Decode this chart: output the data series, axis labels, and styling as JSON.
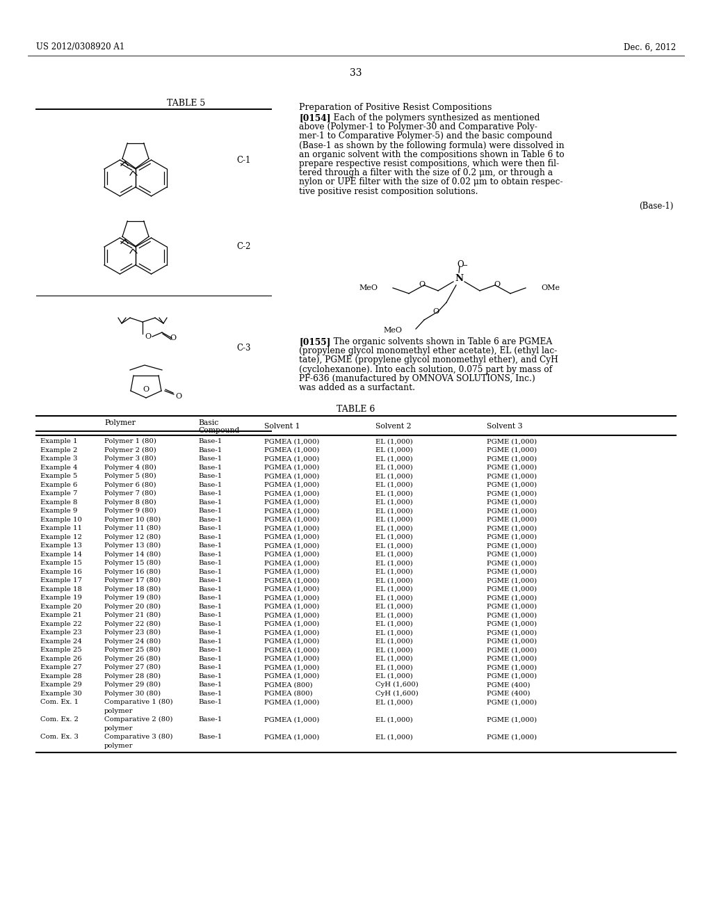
{
  "header_left": "US 2012/0308920 A1",
  "header_right": "Dec. 6, 2012",
  "page_number": "33",
  "table5_title": "TABLE 5",
  "section_title": "Preparation of Positive Resist Compositions",
  "para154_bold": "[0154]",
  "para154_rest": "   Each of the polymers synthesized as mentioned above (Polymer-1 to Polymer-30 and Comparative Poly-mer-1 to Comparative Polymer-5) and the basic compound (Base-1 as shown by the following formula) were dissolved in an organic solvent with the compositions shown in Table 6 to prepare respective resist compositions, which were then fil-tered through a filter with the size of 0.2 μm, or through a nylon or UPE filter with the size of 0.02 μm to obtain respec-tive positive resist composition solutions.",
  "base1_label": "(Base-1)",
  "para155_bold": "[0155]",
  "para155_rest": "   The organic solvents shown in Table 6 are PGMEA (propylene glycol monomethyl ether acetate), EL (ethyl lac-tate), PGME (propylene glycol monomethyl ether), and CyH (cyclohexanone). Into each solution, 0.075 part by mass of PF-636 (manufactured by OMNOVA SOLUTIONS, Inc.) was added as a surfactant.",
  "table6_title": "TABLE 6",
  "rows": [
    [
      "Example 1",
      "Polymer 1 (80)",
      "Base-1",
      "PGMEA (1,000)",
      "EL (1,000)",
      "PGME (1,000)",
      false
    ],
    [
      "Example 2",
      "Polymer 2 (80)",
      "Base-1",
      "PGMEA (1,000)",
      "EL (1,000)",
      "PGME (1,000)",
      false
    ],
    [
      "Example 3",
      "Polymer 3 (80)",
      "Base-1",
      "PGMEA (1,000)",
      "EL (1,000)",
      "PGME (1,000)",
      false
    ],
    [
      "Example 4",
      "Polymer 4 (80)",
      "Base-1",
      "PGMEA (1,000)",
      "EL (1,000)",
      "PGME (1,000)",
      false
    ],
    [
      "Example 5",
      "Polymer 5 (80)",
      "Base-1",
      "PGMEA (1,000)",
      "EL (1,000)",
      "PGME (1,000)",
      false
    ],
    [
      "Example 6",
      "Polymer 6 (80)",
      "Base-1",
      "PGMEA (1,000)",
      "EL (1,000)",
      "PGME (1,000)",
      false
    ],
    [
      "Example 7",
      "Polymer 7 (80)",
      "Base-1",
      "PGMEA (1,000)",
      "EL (1,000)",
      "PGME (1,000)",
      false
    ],
    [
      "Example 8",
      "Polymer 8 (80)",
      "Base-1",
      "PGMEA (1,000)",
      "EL (1,000)",
      "PGME (1,000)",
      false
    ],
    [
      "Example 9",
      "Polymer 9 (80)",
      "Base-1",
      "PGMEA (1,000)",
      "EL (1,000)",
      "PGME (1,000)",
      false
    ],
    [
      "Example 10",
      "Polymer 10 (80)",
      "Base-1",
      "PGMEA (1,000)",
      "EL (1,000)",
      "PGME (1,000)",
      false
    ],
    [
      "Example 11",
      "Polymer 11 (80)",
      "Base-1",
      "PGMEA (1,000)",
      "EL (1,000)",
      "PGME (1,000)",
      false
    ],
    [
      "Example 12",
      "Polymer 12 (80)",
      "Base-1",
      "PGMEA (1,000)",
      "EL (1,000)",
      "PGME (1,000)",
      false
    ],
    [
      "Example 13",
      "Polymer 13 (80)",
      "Base-1",
      "PGMEA (1,000)",
      "EL (1,000)",
      "PGME (1,000)",
      false
    ],
    [
      "Example 14",
      "Polymer 14 (80)",
      "Base-1",
      "PGMEA (1,000)",
      "EL (1,000)",
      "PGME (1,000)",
      false
    ],
    [
      "Example 15",
      "Polymer 15 (80)",
      "Base-1",
      "PGMEA (1,000)",
      "EL (1,000)",
      "PGME (1,000)",
      false
    ],
    [
      "Example 16",
      "Polymer 16 (80)",
      "Base-1",
      "PGMEA (1,000)",
      "EL (1,000)",
      "PGME (1,000)",
      false
    ],
    [
      "Example 17",
      "Polymer 17 (80)",
      "Base-1",
      "PGMEA (1,000)",
      "EL (1,000)",
      "PGME (1,000)",
      false
    ],
    [
      "Example 18",
      "Polymer 18 (80)",
      "Base-1",
      "PGMEA (1,000)",
      "EL (1,000)",
      "PGME (1,000)",
      false
    ],
    [
      "Example 19",
      "Polymer 19 (80)",
      "Base-1",
      "PGMEA (1,000)",
      "EL (1,000)",
      "PGME (1,000)",
      false
    ],
    [
      "Example 20",
      "Polymer 20 (80)",
      "Base-1",
      "PGMEA (1,000)",
      "EL (1,000)",
      "PGME (1,000)",
      false
    ],
    [
      "Example 21",
      "Polymer 21 (80)",
      "Base-1",
      "PGMEA (1,000)",
      "EL (1,000)",
      "PGME (1,000)",
      false
    ],
    [
      "Example 22",
      "Polymer 22 (80)",
      "Base-1",
      "PGMEA (1,000)",
      "EL (1,000)",
      "PGME (1,000)",
      false
    ],
    [
      "Example 23",
      "Polymer 23 (80)",
      "Base-1",
      "PGMEA (1,000)",
      "EL (1,000)",
      "PGME (1,000)",
      false
    ],
    [
      "Example 24",
      "Polymer 24 (80)",
      "Base-1",
      "PGMEA (1,000)",
      "EL (1,000)",
      "PGME (1,000)",
      false
    ],
    [
      "Example 25",
      "Polymer 25 (80)",
      "Base-1",
      "PGMEA (1,000)",
      "EL (1,000)",
      "PGME (1,000)",
      false
    ],
    [
      "Example 26",
      "Polymer 26 (80)",
      "Base-1",
      "PGMEA (1,000)",
      "EL (1,000)",
      "PGME (1,000)",
      false
    ],
    [
      "Example 27",
      "Polymer 27 (80)",
      "Base-1",
      "PGMEA (1,000)",
      "EL (1,000)",
      "PGME (1,000)",
      false
    ],
    [
      "Example 28",
      "Polymer 28 (80)",
      "Base-1",
      "PGMEA (1,000)",
      "EL (1,000)",
      "PGME (1,000)",
      false
    ],
    [
      "Example 29",
      "Polymer 29 (80)",
      "Base-1",
      "PGMEA (800)",
      "CyH (1,600)",
      "PGME (400)",
      false
    ],
    [
      "Example 30",
      "Polymer 30 (80)",
      "Base-1",
      "PGMEA (800)",
      "CyH (1,600)",
      "PGME (400)",
      false
    ],
    [
      "Com. Ex. 1",
      "Comparative 1 (80)",
      "Base-1",
      "PGMEA (1,000)",
      "EL (1,000)",
      "PGME (1,000)",
      true
    ],
    [
      "Com. Ex. 2",
      "Comparative 2 (80)",
      "Base-1",
      "PGMEA (1,000)",
      "EL (1,000)",
      "PGME (1,000)",
      true
    ],
    [
      "Com. Ex. 3",
      "Comparative 3 (80)",
      "Base-1",
      "PGMEA (1,000)",
      "EL (1,000)",
      "PGME (1,000)",
      true
    ]
  ],
  "bg_color": "#ffffff",
  "text_color": "#000000"
}
